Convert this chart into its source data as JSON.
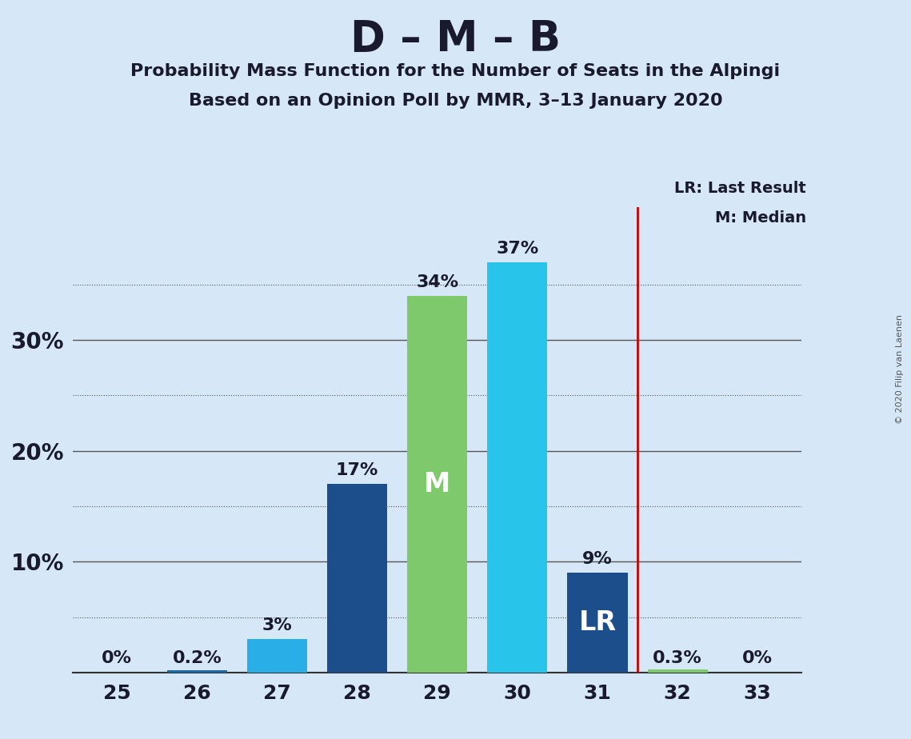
{
  "title": "D – M – B",
  "subtitle1": "Probability Mass Function for the Number of Seats in the Alpingi",
  "subtitle2": "Based on an Opinion Poll by MMR, 3–13 January 2020",
  "copyright": "© 2020 Filip van Laenen",
  "categories": [
    25,
    26,
    27,
    28,
    29,
    30,
    31,
    32,
    33
  ],
  "values": [
    0.0,
    0.2,
    3.0,
    17.0,
    34.0,
    37.0,
    9.0,
    0.3,
    0.0
  ],
  "labels": [
    "0%",
    "0.2%",
    "3%",
    "17%",
    "34%",
    "37%",
    "9%",
    "0.3%",
    "0%"
  ],
  "bar_colors": [
    "#1a6aaa",
    "#1a6aaa",
    "#29aee8",
    "#1b4e8a",
    "#7dc96b",
    "#29c4ea",
    "#1b4e8a",
    "#7dc96b",
    "#1a6aaa"
  ],
  "median_bar": 4,
  "lr_bar": 6,
  "background_color": "#d6e8f7",
  "plot_bg_color": "#d6e8f7",
  "grid_dotted_color": "#555555",
  "grid_solid_color": "#555555",
  "annotation_M_color": "#ffffff",
  "annotation_LR_color": "#ffffff",
  "vline_color": "#cc0000",
  "legend_text1": "LR: Last Result",
  "legend_text2": "M: Median",
  "ylim": [
    0,
    42
  ],
  "solid_grid_lines": [
    10,
    20,
    30
  ],
  "dotted_grid_lines": [
    5,
    15,
    25,
    35
  ]
}
